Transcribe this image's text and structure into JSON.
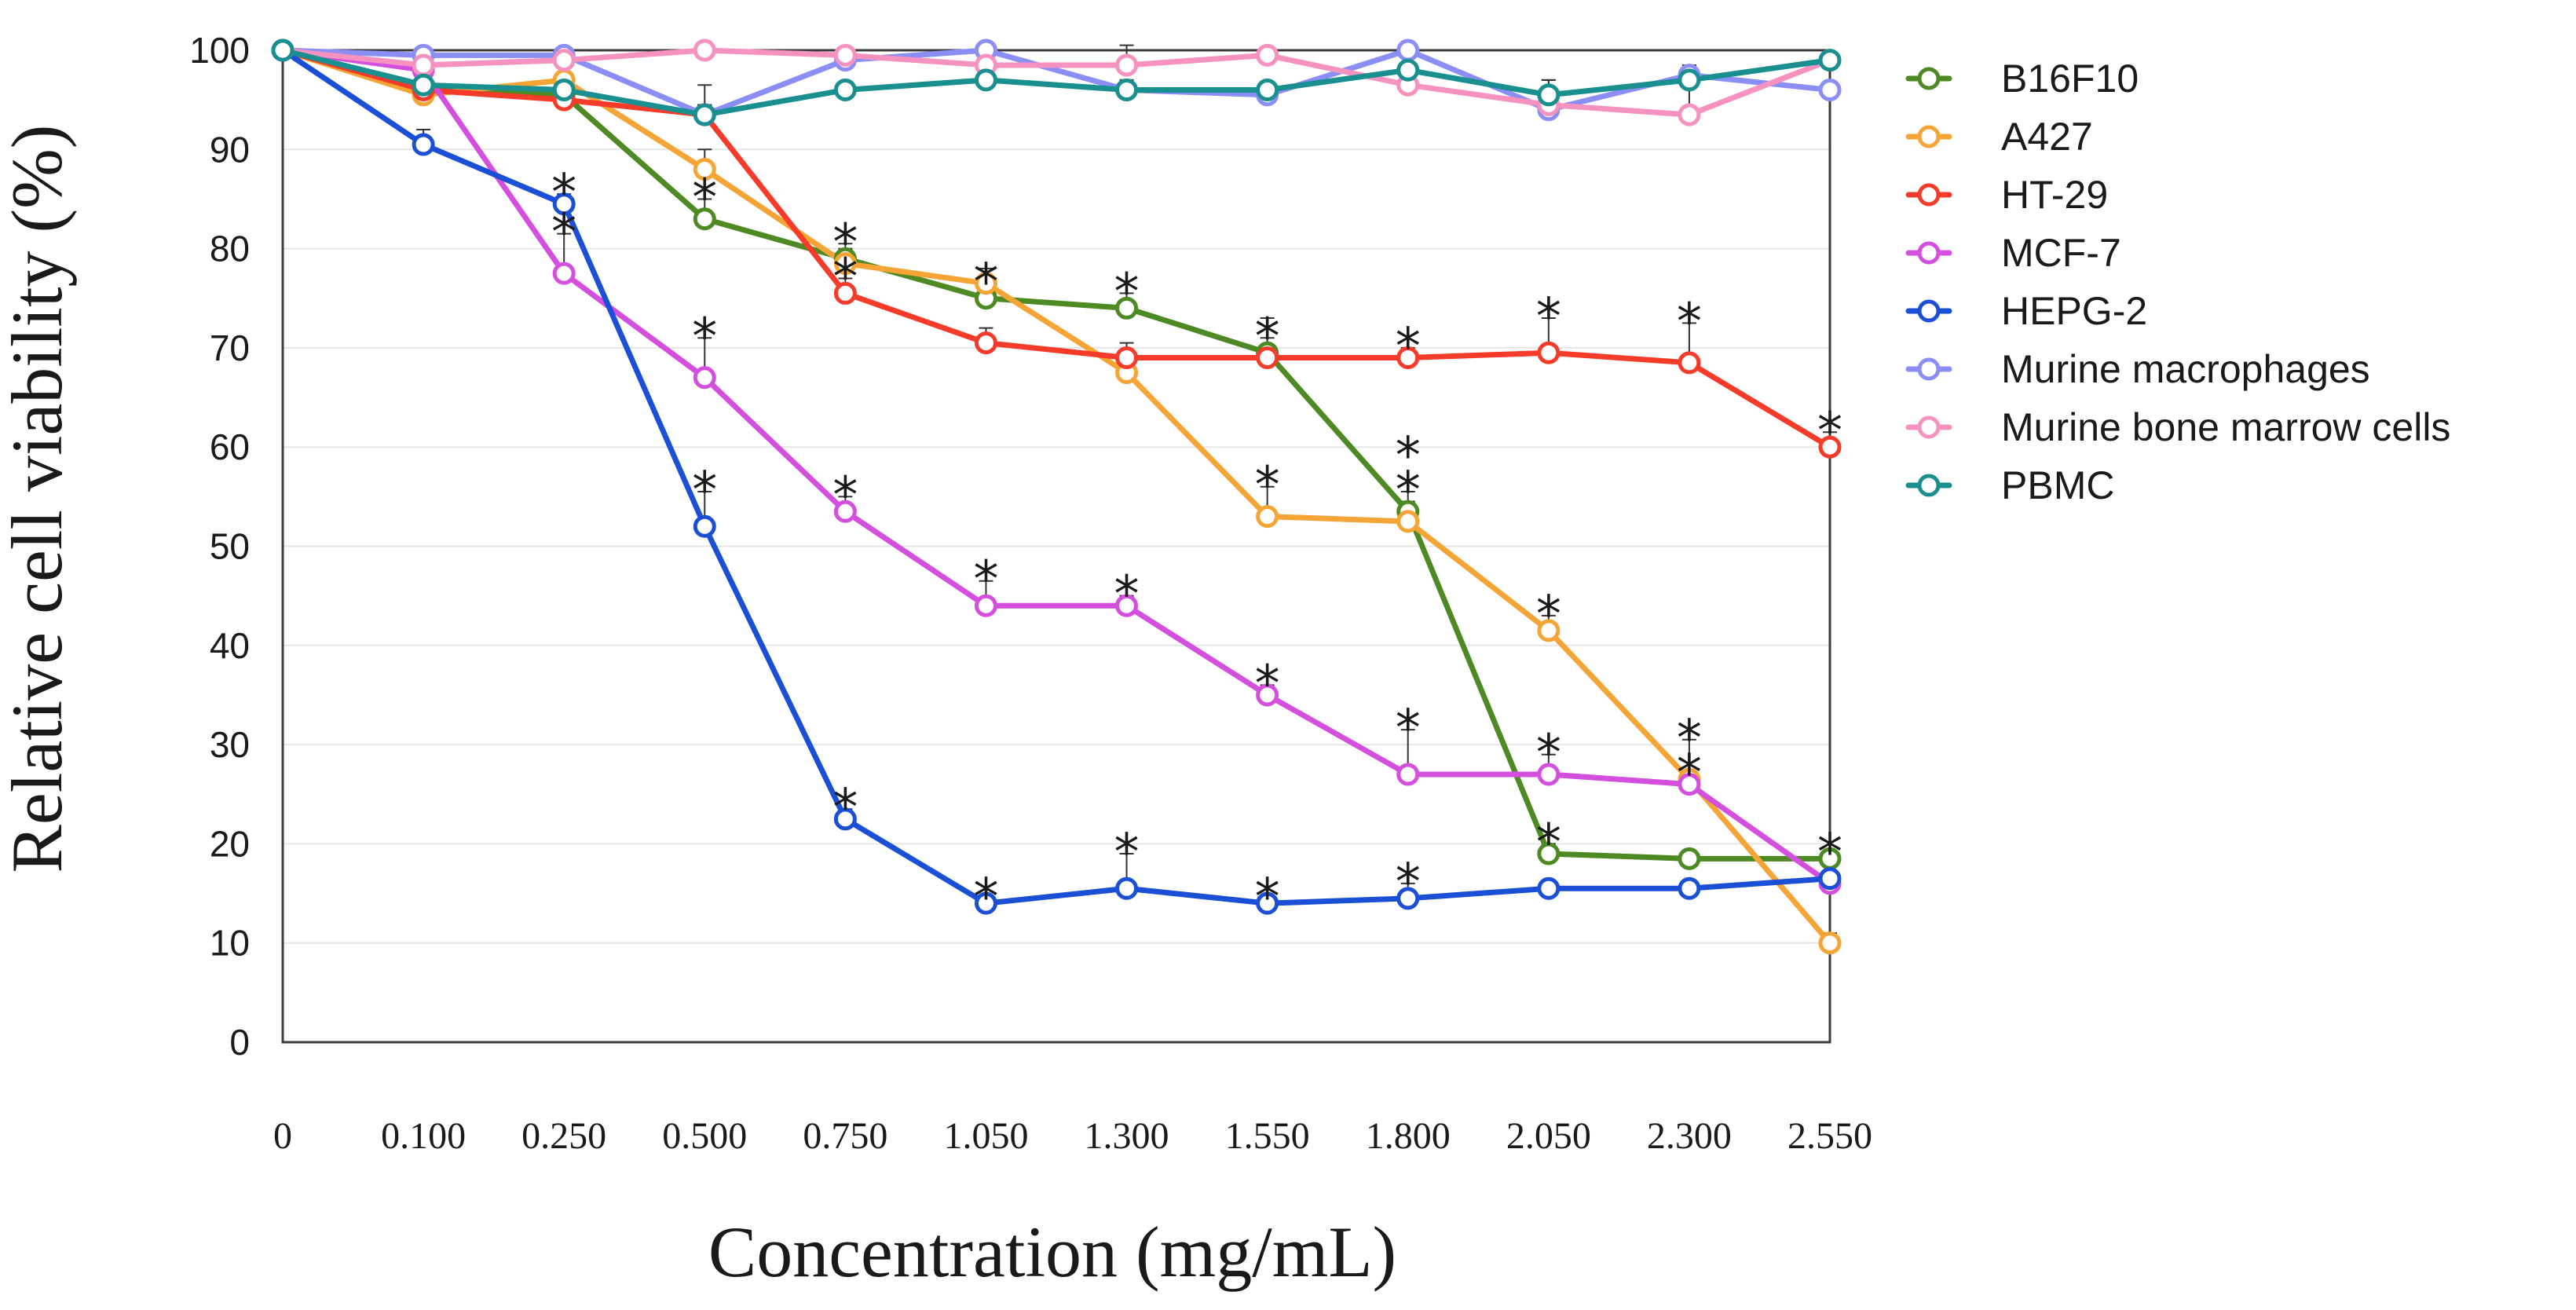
{
  "chart_data": {
    "type": "line",
    "title": "",
    "xlabel": "Concentration (mg/mL)",
    "ylabel": "Relative cell viability (%)",
    "ylim": [
      0,
      100
    ],
    "yticks": [
      "0",
      "10",
      "20",
      "30",
      "40",
      "50",
      "60",
      "70",
      "80",
      "90",
      "100"
    ],
    "categories": [
      "0",
      "0.100",
      "0.250",
      "0.500",
      "0.750",
      "1.050",
      "1.300",
      "1.550",
      "1.800",
      "2.050",
      "2.300",
      "2.550"
    ],
    "grid": true,
    "legend_position": "right",
    "significance_marker": "*",
    "series": [
      {
        "name": "B16F10",
        "color": "#4d8a23",
        "values": [
          100,
          96.5,
          95.5,
          83,
          79,
          75,
          74,
          69.5,
          53.5,
          19,
          18.5,
          18.5
        ],
        "errors": [
          0,
          1.5,
          1.5,
          2,
          1.5,
          1.5,
          1.5,
          1.5,
          2,
          1,
          0.5,
          0.5
        ],
        "stars": [
          false,
          false,
          false,
          true,
          true,
          true,
          true,
          true,
          true,
          true,
          false,
          true
        ]
      },
      {
        "name": "A427",
        "color": "#f5a436",
        "values": [
          100,
          95.5,
          97,
          88,
          78.5,
          76.5,
          67.5,
          53,
          52.5,
          41.5,
          26.5,
          10
        ],
        "errors": [
          0,
          1,
          1.5,
          2,
          1.5,
          1.5,
          2,
          3,
          2,
          1.5,
          4,
          1
        ],
        "stars": [
          false,
          false,
          false,
          false,
          false,
          false,
          false,
          true,
          true,
          true,
          true,
          false
        ]
      },
      {
        "name": "HT-29",
        "color": "#f53b2a",
        "values": [
          100,
          96,
          95,
          93.5,
          75.5,
          70.5,
          69,
          69,
          69,
          69.5,
          68.5,
          60
        ],
        "errors": [
          0,
          1,
          1,
          3,
          1.5,
          1.5,
          1.5,
          4,
          1,
          3.5,
          4,
          1.5
        ],
        "stars": [
          false,
          false,
          false,
          false,
          true,
          false,
          false,
          false,
          true,
          true,
          true,
          true
        ]
      },
      {
        "name": "MCF-7",
        "color": "#d44fdd",
        "values": [
          100,
          98,
          77.5,
          67,
          53.5,
          44,
          44,
          35,
          27,
          27,
          26,
          16
        ],
        "errors": [
          0,
          1,
          4,
          4,
          1.5,
          2.5,
          1,
          1,
          4.5,
          2,
          1,
          1
        ],
        "stars": [
          false,
          false,
          true,
          true,
          true,
          true,
          true,
          true,
          true,
          true,
          true,
          false
        ]
      },
      {
        "name": "HEPG-2",
        "color": "#1a4fd6",
        "values": [
          100,
          90.5,
          84.5,
          52,
          22.5,
          14,
          15.5,
          14,
          14.5,
          15.5,
          15.5,
          16.5
        ],
        "errors": [
          0,
          1.5,
          1,
          3.5,
          1,
          0.5,
          3.5,
          0.5,
          1.5,
          0.5,
          0.5,
          0.5
        ],
        "stars": [
          false,
          false,
          true,
          true,
          true,
          true,
          true,
          true,
          true,
          false,
          false,
          false
        ]
      },
      {
        "name": "Murine macrophages",
        "color": "#8a8ef5",
        "values": [
          100,
          99.5,
          99.5,
          93.5,
          99,
          100,
          96,
          95.5,
          100,
          94,
          97.5,
          96
        ],
        "errors": [
          0,
          0.5,
          0.5,
          1,
          0.5,
          0.5,
          1,
          0.5,
          0.5,
          3,
          1,
          0.5
        ],
        "stars": [
          false,
          false,
          false,
          false,
          false,
          false,
          false,
          false,
          false,
          false,
          false,
          false
        ]
      },
      {
        "name": "Murine bone marrow cells",
        "color": "#f592c0",
        "values": [
          100,
          98.5,
          99,
          100,
          99.5,
          98.5,
          98.5,
          99.5,
          96.5,
          94.5,
          93.5,
          99
        ],
        "errors": [
          0,
          0.5,
          0.5,
          0.5,
          0.5,
          2,
          2,
          0.5,
          1,
          0.5,
          3,
          0.5
        ],
        "stars": [
          false,
          false,
          false,
          false,
          false,
          false,
          false,
          false,
          false,
          false,
          false,
          false
        ]
      },
      {
        "name": "PBMC",
        "color": "#1a8f8f",
        "values": [
          100,
          96.5,
          96,
          93.5,
          96,
          97,
          96,
          96,
          98,
          95.5,
          97,
          99
        ],
        "errors": [
          0,
          0.5,
          1,
          1,
          0.5,
          0.5,
          0.5,
          0.5,
          1.5,
          1.5,
          1,
          0.5
        ],
        "stars": [
          false,
          false,
          false,
          false,
          false,
          false,
          false,
          false,
          false,
          false,
          false,
          false
        ]
      }
    ]
  }
}
